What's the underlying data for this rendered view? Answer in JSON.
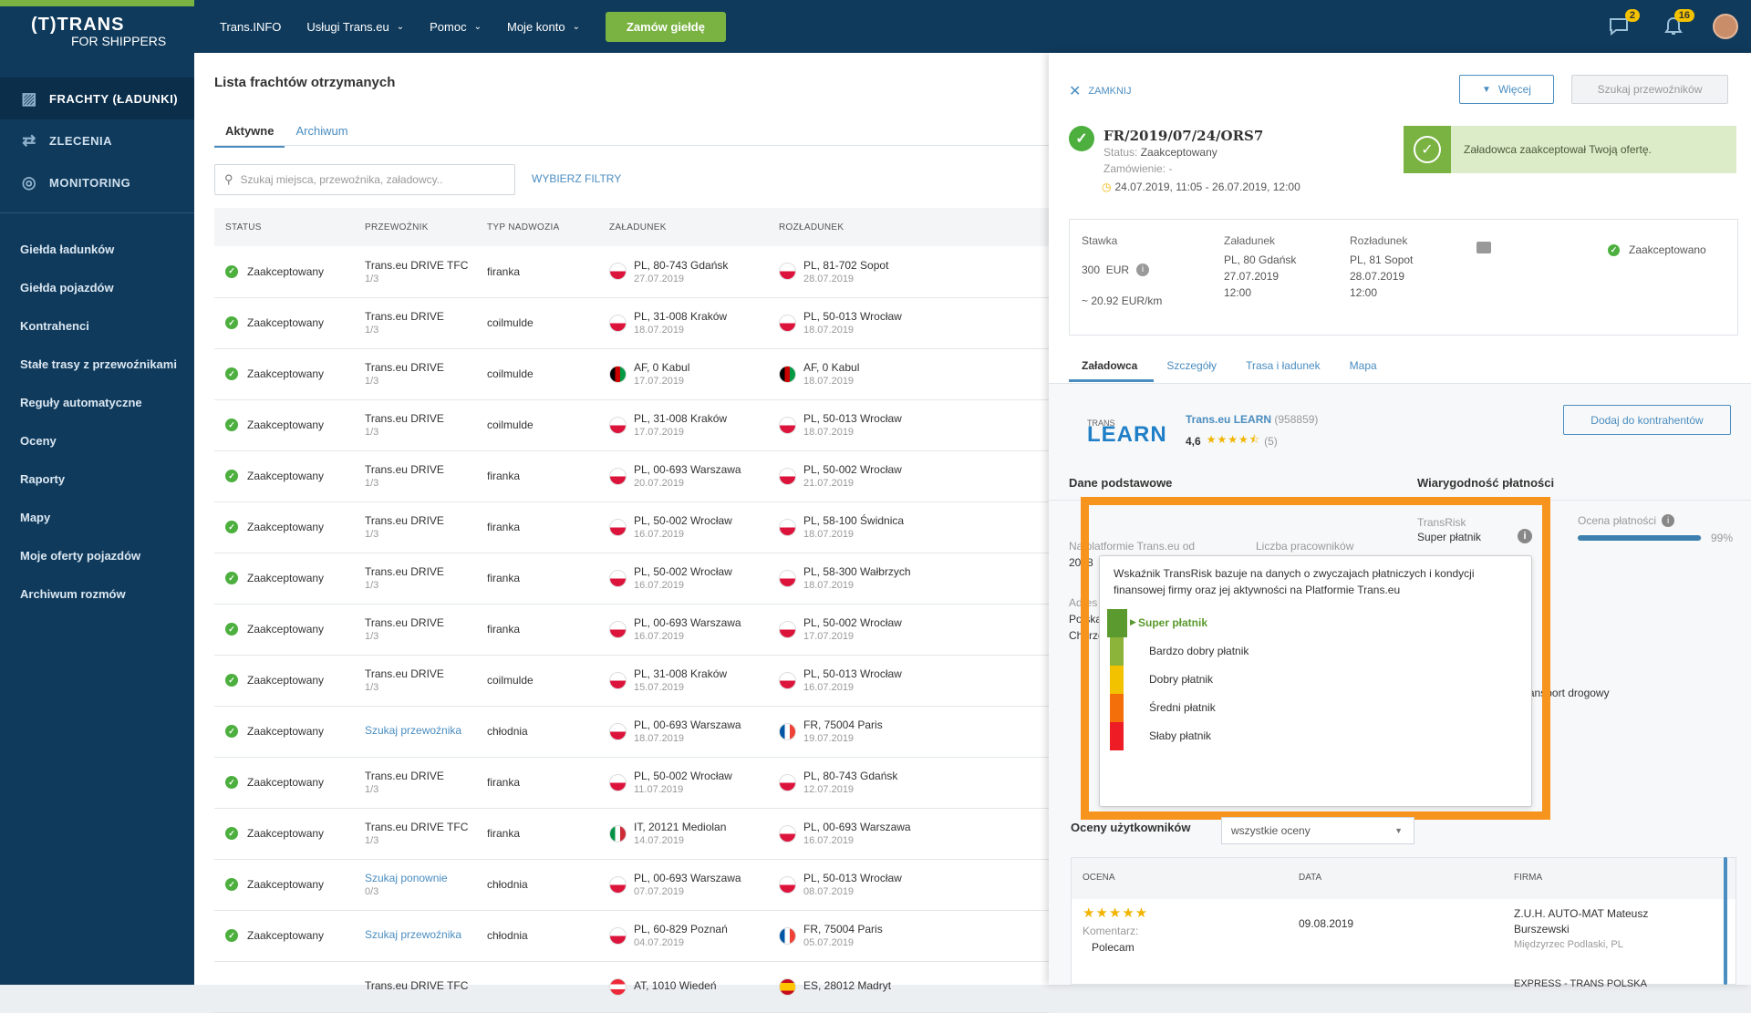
{
  "brand": {
    "logo_main": "(T)TRANS",
    "logo_sub": "FOR SHIPPERS"
  },
  "sidebar": {
    "main": [
      {
        "label": "FRACHTY (ŁADUNKI)",
        "icon": "freight-icon",
        "active": true
      },
      {
        "label": "ZLECENIA",
        "icon": "orders-icon"
      },
      {
        "label": "MONITORING",
        "icon": "monitoring-icon"
      }
    ],
    "sub": [
      "Giełda ładunków",
      "Giełda pojazdów",
      "Kontrahenci",
      "Stałe trasy z przewoźnikami",
      "Reguły automatyczne",
      "Oceny",
      "Raporty",
      "Mapy",
      "Moje oferty pojazdów",
      "Archiwum rozmów"
    ]
  },
  "topnav": {
    "items": [
      {
        "label": "Trans.INFO",
        "chevron": false
      },
      {
        "label": "Usługi Trans.eu",
        "chevron": true
      },
      {
        "label": "Pomoc",
        "chevron": true
      },
      {
        "label": "Moje konto",
        "chevron": true
      }
    ],
    "cta": "Zamów giełdę",
    "messages_count": "2",
    "notifications_count": "16"
  },
  "main": {
    "title": "Lista frachtów otrzymanych",
    "tabs": [
      "Aktywne",
      "Archiwum"
    ],
    "search_placeholder": "Szukaj miejsca, przewoźnika, załadowcy..",
    "filters": "WYBIERZ FILTRY",
    "columns": [
      "STATUS",
      "PRZEWOŹNIK",
      "TYP NADWOZIA",
      "ZAŁADUNEK",
      "ROZŁADUNEK"
    ],
    "rows": [
      {
        "status": "Zaakceptowany",
        "carrier": "Trans.eu DRIVE TFC",
        "sub": "1/3",
        "link": false,
        "body": "firanka",
        "load_flag": "pl",
        "load": "PL, 80-743 Gdańsk",
        "load_date": "27.07.2019",
        "unload_flag": "pl",
        "unload": "PL, 81-702 Sopot",
        "unload_date": "28.07.2019"
      },
      {
        "status": "Zaakceptowany",
        "carrier": "Trans.eu DRIVE",
        "sub": "1/3",
        "link": false,
        "body": "coilmulde",
        "load_flag": "pl",
        "load": "PL, 31-008 Kraków",
        "load_date": "18.07.2019",
        "unload_flag": "pl",
        "unload": "PL, 50-013 Wrocław",
        "unload_date": "18.07.2019"
      },
      {
        "status": "Zaakceptowany",
        "carrier": "Trans.eu DRIVE",
        "sub": "1/3",
        "link": false,
        "body": "coilmulde",
        "load_flag": "af",
        "load": "AF, 0 Kabul",
        "load_date": "17.07.2019",
        "unload_flag": "af",
        "unload": "AF, 0 Kabul",
        "unload_date": "18.07.2019"
      },
      {
        "status": "Zaakceptowany",
        "carrier": "Trans.eu DRIVE",
        "sub": "1/3",
        "link": false,
        "body": "coilmulde",
        "load_flag": "pl",
        "load": "PL, 31-008 Kraków",
        "load_date": "17.07.2019",
        "unload_flag": "pl",
        "unload": "PL, 50-013 Wrocław",
        "unload_date": "18.07.2019"
      },
      {
        "status": "Zaakceptowany",
        "carrier": "Trans.eu DRIVE",
        "sub": "1/3",
        "link": false,
        "body": "firanka",
        "load_flag": "pl",
        "load": "PL, 00-693 Warszawa",
        "load_date": "20.07.2019",
        "unload_flag": "pl",
        "unload": "PL, 50-002 Wrocław",
        "unload_date": "21.07.2019"
      },
      {
        "status": "Zaakceptowany",
        "carrier": "Trans.eu DRIVE",
        "sub": "1/3",
        "link": false,
        "body": "firanka",
        "load_flag": "pl",
        "load": "PL, 50-002 Wrocław",
        "load_date": "16.07.2019",
        "unload_flag": "pl",
        "unload": "PL, 58-100 Świdnica",
        "unload_date": "18.07.2019"
      },
      {
        "status": "Zaakceptowany",
        "carrier": "Trans.eu DRIVE",
        "sub": "1/3",
        "link": false,
        "body": "firanka",
        "load_flag": "pl",
        "load": "PL, 50-002 Wrocław",
        "load_date": "16.07.2019",
        "unload_flag": "pl",
        "unload": "PL, 58-300 Wałbrzych",
        "unload_date": "18.07.2019"
      },
      {
        "status": "Zaakceptowany",
        "carrier": "Trans.eu DRIVE",
        "sub": "1/3",
        "link": false,
        "body": "firanka",
        "load_flag": "pl",
        "load": "PL, 00-693 Warszawa",
        "load_date": "16.07.2019",
        "unload_flag": "pl",
        "unload": "PL, 50-002 Wrocław",
        "unload_date": "17.07.2019"
      },
      {
        "status": "Zaakceptowany",
        "carrier": "Trans.eu DRIVE",
        "sub": "1/3",
        "link": false,
        "body": "coilmulde",
        "load_flag": "pl",
        "load": "PL, 31-008 Kraków",
        "load_date": "15.07.2019",
        "unload_flag": "pl",
        "unload": "PL, 50-013 Wrocław",
        "unload_date": "16.07.2019"
      },
      {
        "status": "Zaakceptowany",
        "carrier": "Szukaj przewoźnika",
        "sub": "",
        "link": true,
        "body": "chłodnia",
        "load_flag": "pl",
        "load": "PL, 00-693 Warszawa",
        "load_date": "18.07.2019",
        "unload_flag": "fr",
        "unload": "FR, 75004 Paris",
        "unload_date": "19.07.2019"
      },
      {
        "status": "Zaakceptowany",
        "carrier": "Trans.eu DRIVE",
        "sub": "1/3",
        "link": false,
        "body": "firanka",
        "load_flag": "pl",
        "load": "PL, 50-002 Wrocław",
        "load_date": "11.07.2019",
        "unload_flag": "pl",
        "unload": "PL, 80-743 Gdańsk",
        "unload_date": "12.07.2019"
      },
      {
        "status": "Zaakceptowany",
        "carrier": "Trans.eu DRIVE TFC",
        "sub": "1/3",
        "link": false,
        "body": "firanka",
        "load_flag": "it",
        "load": "IT, 20121 Mediolan",
        "load_date": "14.07.2019",
        "unload_flag": "pl",
        "unload": "PL, 00-693 Warszawa",
        "unload_date": "16.07.2019"
      },
      {
        "status": "Zaakceptowany",
        "carrier": "Szukaj ponownie",
        "sub": "0/3",
        "link": true,
        "body": "chłodnia",
        "load_flag": "pl",
        "load": "PL, 00-693 Warszawa",
        "load_date": "07.07.2019",
        "unload_flag": "pl",
        "unload": "PL, 50-013 Wrocław",
        "unload_date": "08.07.2019"
      },
      {
        "status": "Zaakceptowany",
        "carrier": "Szukaj przewoźnika",
        "sub": "",
        "link": true,
        "body": "chłodnia",
        "load_flag": "pl",
        "load": "PL, 60-829 Poznań",
        "load_date": "04.07.2019",
        "unload_flag": "fr",
        "unload": "FR, 75004 Paris",
        "unload_date": "05.07.2019"
      },
      {
        "status": "",
        "carrier": "Trans.eu DRIVE TFC",
        "sub": "",
        "link": false,
        "body": "",
        "load_flag": "at",
        "load": "AT, 1010 Wiedeń",
        "load_date": "",
        "unload_flag": "es",
        "unload": "ES, 28012 Madryt",
        "unload_date": ""
      }
    ]
  },
  "panel": {
    "close": "ZAMKNIJ",
    "more": "Więcej",
    "find_carriers": "Szukaj przewoźników",
    "freight_id": "FR/2019/07/24/ORS7",
    "status_label": "Status:",
    "status_value": "Zaakceptowany",
    "order_label": "Zamówienie: -",
    "dates": "24.07.2019, 11:05 - 26.07.2019, 12:00",
    "alert": "Załadowca zaakceptował Twoją ofertę.",
    "rate_label": "Stawka",
    "rate_value": "300",
    "currency": "EUR",
    "per_km": "~ 20.92  EUR/km",
    "load_label": "Załadunek",
    "load_place": "PL, 80 Gdańsk",
    "load_date": "27.07.2019",
    "load_time": "12:00",
    "unload_label": "Rozładunek",
    "unload_place": "PL, 81 Sopot",
    "unload_date": "28.07.2019",
    "unload_time": "12:00",
    "accepted": "Zaakceptowano",
    "tabs": [
      "Załadowca",
      "Szczegóły",
      "Trasa i ładunek",
      "Mapa"
    ],
    "company_logo_small": "TRANS",
    "company_logo": "LEARN",
    "company_name": "Trans.eu LEARN",
    "company_id": "(958859)",
    "rating": "4,6",
    "rating_count": "(5)",
    "rating_stars": 4.5,
    "add_contractor": "Dodaj do kontrahentów",
    "basic_data": "Dane podstawowe",
    "payment_reliability": "Wiarygodność płatności",
    "on_platform_since": "Na platformie Trans.eu od",
    "since_value": "2018",
    "employees": "Liczba pracowników",
    "address_label": "Adres",
    "address_line1": "Polska",
    "address_line2": "Chorzów",
    "transrisk_label": "TransRisk",
    "transrisk_value": "Super płatnik",
    "payment_score_label": "Ocena płatności",
    "payment_score": "99%",
    "payment_score_fraction": 0.99,
    "transport_type": "Transport drogowy",
    "popover_text": "Wskaźnik TransRisk bazuje na danych o zwyczajach płatniczych i kondycji finansowej firmy oraz jej aktywności na Platformie Trans.eu",
    "scale": [
      {
        "label": "Super płatnik",
        "color": "#5a9a2e",
        "active": true
      },
      {
        "label": "Bardzo dobry płatnik",
        "color": "#8cb43a"
      },
      {
        "label": "Dobry płatnik",
        "color": "#f2c200"
      },
      {
        "label": "Średni płatnik",
        "color": "#f26f0a"
      },
      {
        "label": "Słaby płatnik",
        "color": "#ee1c25"
      }
    ],
    "user_ratings": "Oceny użytkowników",
    "ratings_filter": "wszystkie oceny",
    "review_cols": [
      "OCENA",
      "DATA",
      "FIRMA"
    ],
    "review": {
      "stars": 5,
      "comment_label": "Komentarz:",
      "comment": "Polecam",
      "date": "09.08.2019",
      "firm": "Z.U.H. AUTO-MAT Mateusz Burszewski",
      "firm_location": "Międzyrzec Podlaski, PL",
      "next_firm": "EXPRESS - TRANS POLSKA"
    }
  },
  "colors": {
    "navy": "#0f3a5c",
    "green": "#7ab342",
    "link": "#4a8dc0",
    "highlight": "#f7941d"
  }
}
